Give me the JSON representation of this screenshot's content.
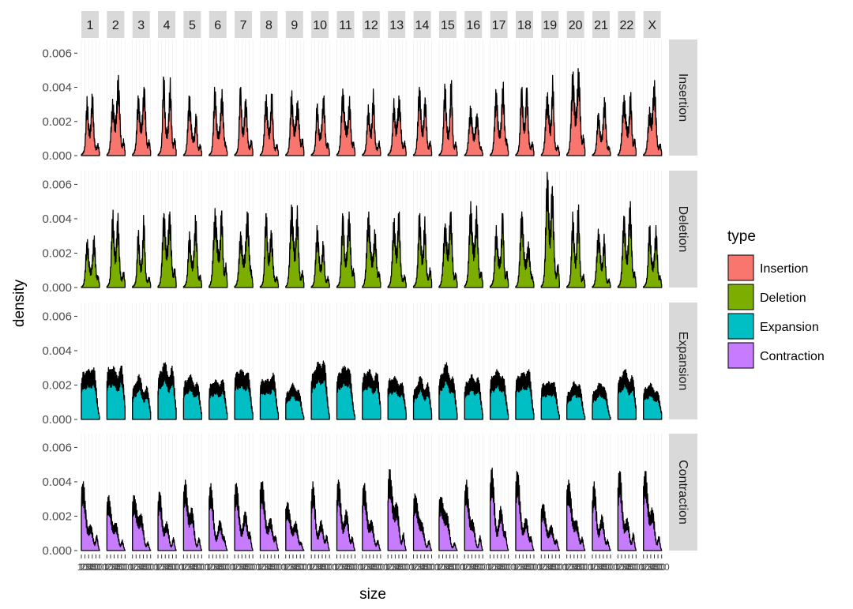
{
  "chart_data": {
    "type": "area",
    "subtype": "faceted density",
    "xlabel": "size",
    "ylabel": "density",
    "ylim": [
      0,
      0.0068
    ],
    "yticks": [
      0,
      0.002,
      0.004,
      0.006
    ],
    "ytick_labels": [
      "0.000",
      "0.002",
      "0.004",
      "0.006"
    ],
    "xlim": [
      0,
      500
    ],
    "xticks": [
      0,
      100,
      200,
      300,
      400,
      500
    ],
    "xtick_labels": [
      "1",
      "100",
      "200",
      "300",
      "400",
      "500"
    ],
    "columns": [
      "1",
      "2",
      "3",
      "4",
      "5",
      "6",
      "7",
      "8",
      "9",
      "10",
      "11",
      "12",
      "13",
      "14",
      "15",
      "16",
      "17",
      "18",
      "19",
      "20",
      "21",
      "22",
      "X"
    ],
    "rows": [
      "Insertion",
      "Deletion",
      "Expansion",
      "Contraction"
    ],
    "legend": {
      "title": "type",
      "position": "right",
      "entries": [
        {
          "label": "Insertion",
          "color": "#F8766D"
        },
        {
          "label": "Deletion",
          "color": "#7CAE00"
        },
        {
          "label": "Expansion",
          "color": "#00BFC4"
        },
        {
          "label": "Contraction",
          "color": "#C77CFF"
        }
      ]
    },
    "peak_density": {
      "Insertion": [
        0.0036,
        0.0047,
        0.004,
        0.0046,
        0.0035,
        0.004,
        0.004,
        0.0036,
        0.0038,
        0.0035,
        0.0039,
        0.0039,
        0.0035,
        0.004,
        0.0044,
        0.0029,
        0.0043,
        0.004,
        0.0047,
        0.0051,
        0.0034,
        0.0037,
        0.0044
      ],
      "Deletion": [
        0.003,
        0.0045,
        0.0042,
        0.0044,
        0.0042,
        0.0046,
        0.0044,
        0.0043,
        0.0048,
        0.0036,
        0.0044,
        0.0044,
        0.0044,
        0.0043,
        0.0044,
        0.005,
        0.0043,
        0.0044,
        0.0067,
        0.0048,
        0.0034,
        0.005,
        0.0036
      ],
      "Expansion": [
        0.003,
        0.0031,
        0.0026,
        0.0033,
        0.0026,
        0.0023,
        0.0029,
        0.0027,
        0.0021,
        0.0034,
        0.0031,
        0.0029,
        0.0025,
        0.0025,
        0.0033,
        0.0026,
        0.0029,
        0.0029,
        0.0022,
        0.0022,
        0.0021,
        0.0029,
        0.0021
      ],
      "Contraction": [
        0.004,
        0.0032,
        0.0032,
        0.0034,
        0.0041,
        0.0039,
        0.0039,
        0.004,
        0.0028,
        0.004,
        0.0041,
        0.0039,
        0.0047,
        0.0033,
        0.0031,
        0.0041,
        0.0048,
        0.0046,
        0.0027,
        0.0041,
        0.004,
        0.0046,
        0.0046
      ]
    }
  }
}
